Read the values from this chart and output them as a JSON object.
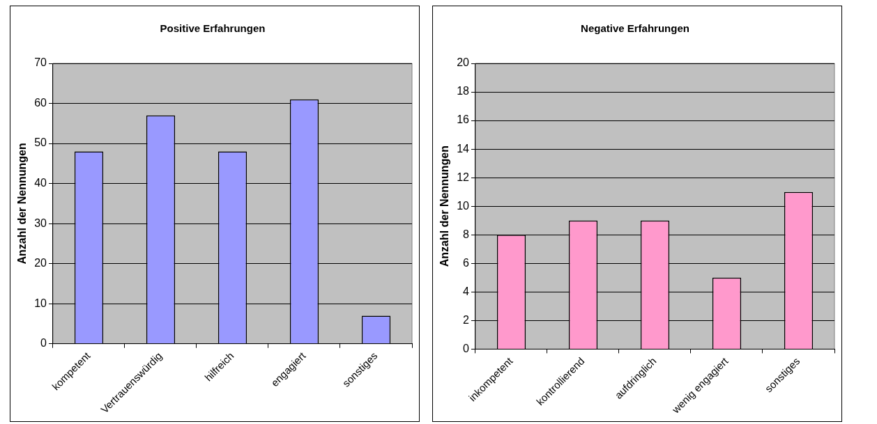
{
  "chart_data": [
    {
      "type": "bar",
      "title": "Positive Erfahrungen",
      "ylabel": "Anzahl der Nennungen",
      "categories": [
        "kompetent",
        "Vertrauenswürdig",
        "hilfreich",
        "engagiert",
        "sonstiges"
      ],
      "series": [
        {
          "color": "#9999ff",
          "values": [
            48,
            57,
            48,
            61,
            7
          ]
        }
      ],
      "ylim": [
        0,
        70
      ],
      "yticks": [
        0,
        10,
        20,
        30,
        40,
        50,
        60,
        70
      ],
      "grid": "y",
      "legend": false
    },
    {
      "type": "bar",
      "title": "Negative Erfahrungen",
      "ylabel": "Anzahl der Nennungen",
      "categories": [
        "inkompetent",
        "kontrollierend",
        "aufdringlich",
        "wenig engagiert",
        "sonstiges"
      ],
      "series": [
        {
          "color": "#ff99cc",
          "values": [
            8,
            9,
            9,
            5,
            11
          ]
        }
      ],
      "ylim": [
        0,
        20
      ],
      "yticks": [
        0,
        2,
        4,
        6,
        8,
        10,
        12,
        14,
        16,
        18,
        20
      ],
      "grid": "y",
      "legend": false
    }
  ]
}
